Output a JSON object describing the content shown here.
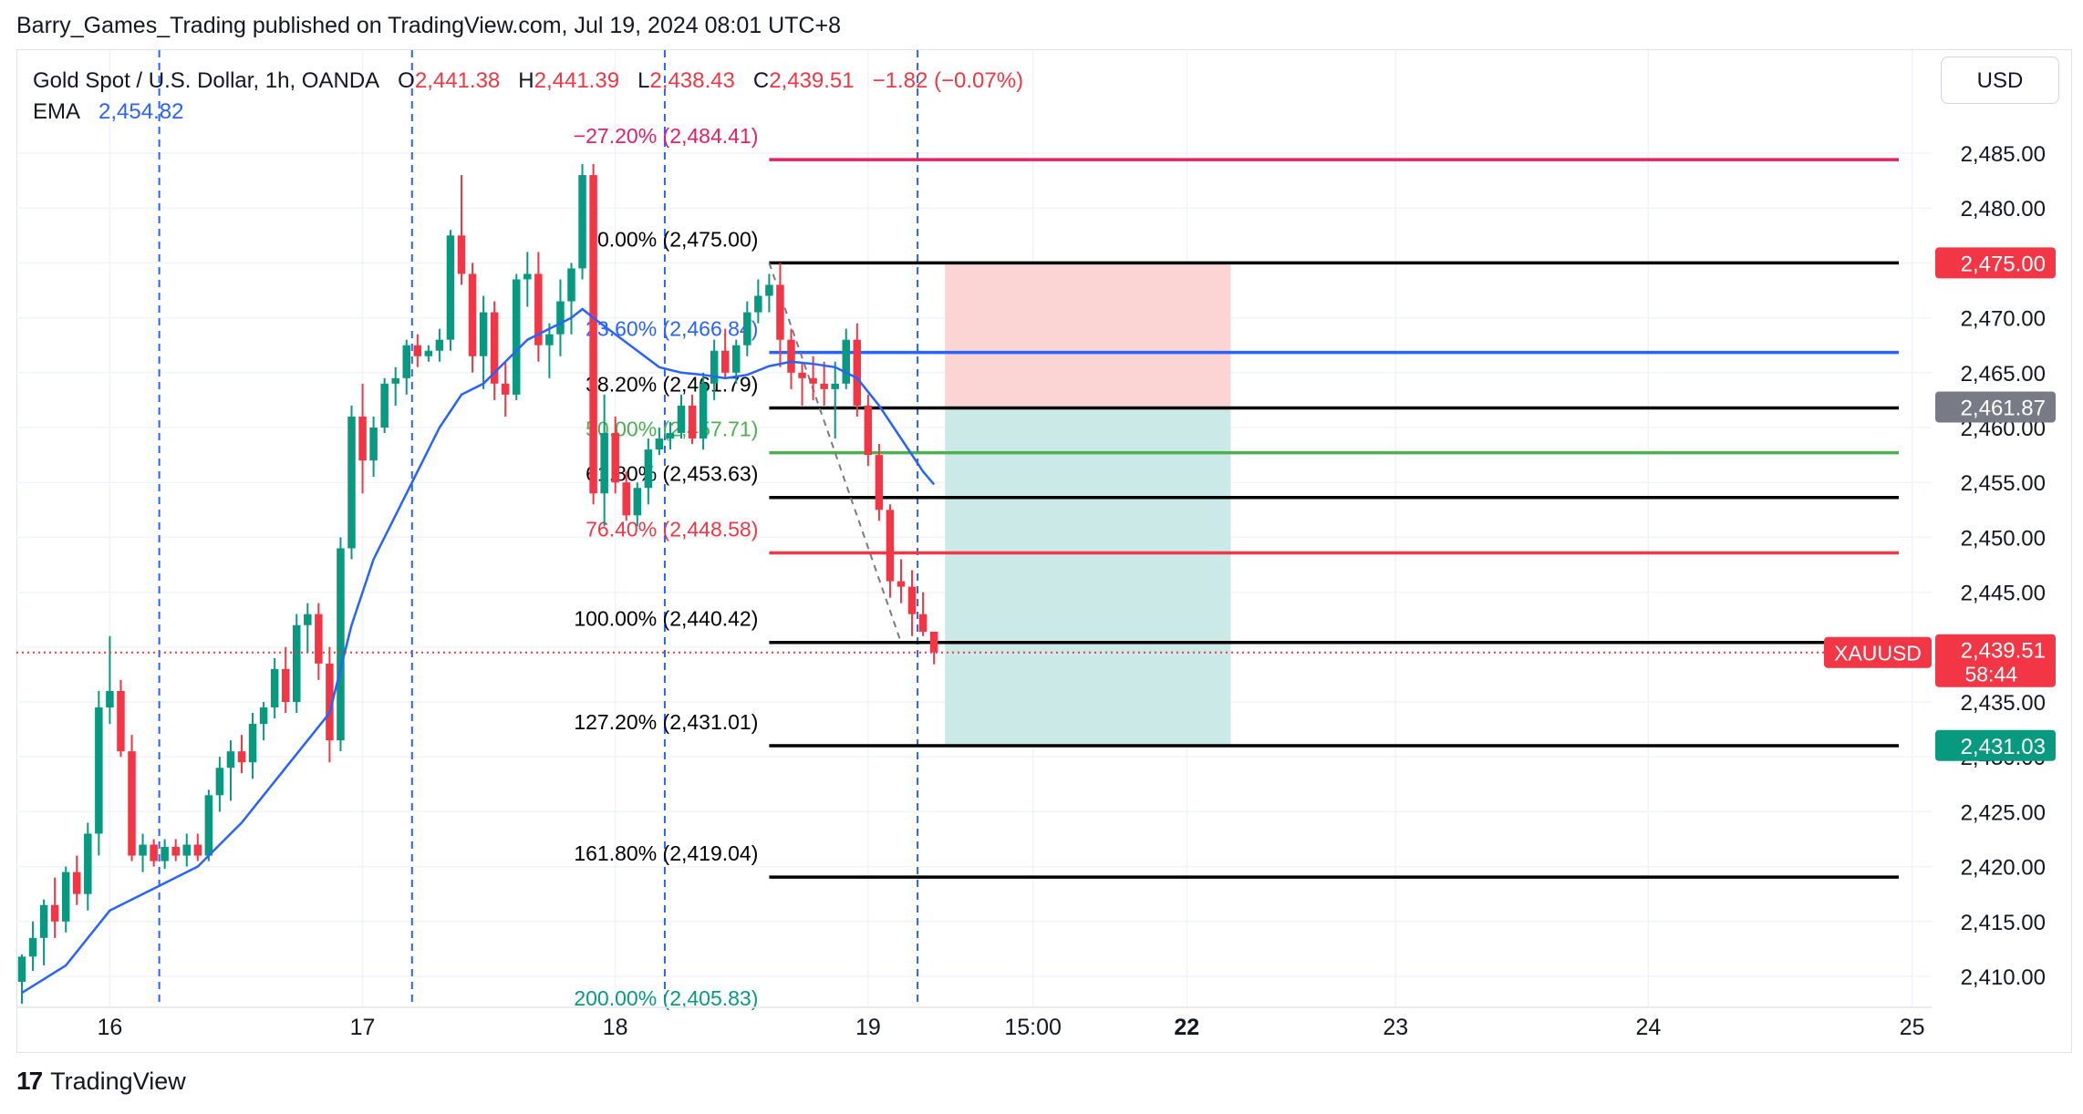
{
  "publisher_line": "Barry_Games_Trading published on TradingView.com, Jul 19, 2024 08:01 UTC+8",
  "legend": {
    "symbol": "Gold Spot / U.S. Dollar, 1h, OANDA",
    "o_label": "O",
    "o_value": "2,441.38",
    "h_label": "H",
    "h_value": "2,441.39",
    "l_label": "L",
    "l_value": "2,438.43",
    "c_label": "C",
    "c_value": "2,439.51",
    "change": "−1.82 (−0.07%)",
    "ema_label": "EMA",
    "ema_value": "2,454.82"
  },
  "currency_button": "USD",
  "footer": {
    "logo_mark": "17",
    "brand": "TradingView"
  },
  "colors": {
    "up": "#089981",
    "down": "#f23645",
    "ema": "#2962ff",
    "stop_zone": "#fbd5d3",
    "target_zone": "#cbe9e7",
    "grid": "#f0f3fa"
  },
  "chart_data": {
    "type": "candlestick",
    "symbol": "XAUUSD",
    "timeframe": "1h",
    "ylim": [
      2407.5,
      2491.5
    ],
    "y_ticks": [
      "2,410.00",
      "2,415.00",
      "2,420.00",
      "2,425.00",
      "2,430.00",
      "2,435.00",
      "2,440.00",
      "2,445.00",
      "2,450.00",
      "2,455.00",
      "2,460.00",
      "2,465.00",
      "2,470.00",
      "2,475.00",
      "2,480.00",
      "2,485.00"
    ],
    "y_tick_values": [
      2410,
      2415,
      2420,
      2425,
      2430,
      2435,
      2440,
      2445,
      2450,
      2455,
      2460,
      2465,
      2470,
      2475,
      2480,
      2485
    ],
    "x_ticks": [
      {
        "label": "16",
        "bar": 8,
        "bold": false
      },
      {
        "label": "17",
        "bar": 31,
        "bold": false
      },
      {
        "label": "18",
        "bar": 54,
        "bold": false
      },
      {
        "label": "19",
        "bar": 77,
        "bold": false
      },
      {
        "label": "15:00",
        "bar": 92,
        "bold": false
      },
      {
        "label": "22",
        "bar": 106,
        "bold": true
      },
      {
        "label": "23",
        "bar": 125,
        "bold": false
      },
      {
        "label": "24",
        "bar": 148,
        "bold": false
      },
      {
        "label": "25",
        "bar": 172,
        "bold": false
      }
    ],
    "session_lines_bar": [
      12.5,
      35.5,
      58.5,
      81.5
    ],
    "candles": [
      [
        2409.5,
        2412,
        2407.5,
        2411.8
      ],
      [
        2411.8,
        2415,
        2410.5,
        2413.5
      ],
      [
        2413.5,
        2417,
        2411,
        2416.5
      ],
      [
        2416.5,
        2419,
        2413.5,
        2415
      ],
      [
        2415,
        2420,
        2414,
        2419.5
      ],
      [
        2419.5,
        2421,
        2416.5,
        2417.5
      ],
      [
        2417.5,
        2424,
        2416,
        2423
      ],
      [
        2423,
        2436,
        2421,
        2434.5
      ],
      [
        2434.5,
        2441,
        2433,
        2436
      ],
      [
        2436,
        2437,
        2430,
        2430.5
      ],
      [
        2430.5,
        2432,
        2420.5,
        2421
      ],
      [
        2421,
        2423,
        2419.5,
        2422
      ],
      [
        2422,
        2422.5,
        2420,
        2420.5
      ],
      [
        2420.5,
        2422.5,
        2419.8,
        2421.8
      ],
      [
        2421.8,
        2422.5,
        2420.5,
        2421
      ],
      [
        2421,
        2423,
        2420,
        2422
      ],
      [
        2422,
        2423,
        2420.5,
        2421
      ],
      [
        2421,
        2427,
        2420.5,
        2426.5
      ],
      [
        2426.5,
        2430,
        2425,
        2429
      ],
      [
        2429,
        2431.5,
        2426,
        2430.5
      ],
      [
        2430.5,
        2432,
        2428.5,
        2429.5
      ],
      [
        2429.5,
        2434,
        2428,
        2433
      ],
      [
        2433,
        2435,
        2431.5,
        2434.5
      ],
      [
        2434.5,
        2439,
        2433.5,
        2438
      ],
      [
        2438,
        2440,
        2434,
        2435
      ],
      [
        2435,
        2443,
        2434,
        2442
      ],
      [
        2442,
        2444,
        2439.5,
        2443
      ],
      [
        2443,
        2444,
        2437,
        2438.5
      ],
      [
        2438.5,
        2440,
        2429.5,
        2431.5
      ],
      [
        2431.5,
        2450,
        2430.5,
        2449
      ],
      [
        2449,
        2462,
        2448,
        2461
      ],
      [
        2461,
        2464,
        2454,
        2457
      ],
      [
        2457,
        2461,
        2455.5,
        2460
      ],
      [
        2460,
        2464.5,
        2459.5,
        2464
      ],
      [
        2464,
        2465.5,
        2462,
        2464.5
      ],
      [
        2464.5,
        2468,
        2463,
        2467.5
      ],
      [
        2467.5,
        2468.5,
        2465.5,
        2466.5
      ],
      [
        2466.5,
        2467.5,
        2466,
        2467
      ],
      [
        2467,
        2469,
        2466,
        2468
      ],
      [
        2468,
        2478,
        2467,
        2477.5
      ],
      [
        2477.5,
        2483,
        2473,
        2474
      ],
      [
        2474,
        2475,
        2465,
        2466.5
      ],
      [
        2466.5,
        2472,
        2463.5,
        2470.5
      ],
      [
        2470.5,
        2471.5,
        2462.5,
        2464
      ],
      [
        2464,
        2466,
        2461,
        2463
      ],
      [
        2463,
        2474,
        2462.5,
        2473.5
      ],
      [
        2473.5,
        2476,
        2471,
        2474
      ],
      [
        2474,
        2476,
        2466,
        2467.5
      ],
      [
        2467.5,
        2469.5,
        2464.5,
        2468.5
      ],
      [
        2468.5,
        2473.5,
        2466.5,
        2471.5
      ],
      [
        2471.5,
        2475,
        2468.5,
        2474.5
      ],
      [
        2474.5,
        2484,
        2473.5,
        2483
      ],
      [
        2483,
        2484,
        2453,
        2454
      ],
      [
        2454,
        2463,
        2451,
        2459.5
      ],
      [
        2459.5,
        2461,
        2454,
        2455
      ],
      [
        2455,
        2456,
        2451.5,
        2452
      ],
      [
        2452,
        2455,
        2451,
        2454.5
      ],
      [
        2454.5,
        2459,
        2453,
        2458
      ],
      [
        2458,
        2460,
        2457.5,
        2459
      ],
      [
        2459,
        2460.5,
        2458,
        2459.5
      ],
      [
        2459.5,
        2463,
        2459,
        2462
      ],
      [
        2462,
        2463,
        2458.5,
        2459
      ],
      [
        2459,
        2465,
        2458,
        2464
      ],
      [
        2464,
        2468,
        2462.5,
        2467
      ],
      [
        2467,
        2469,
        2464.5,
        2465
      ],
      [
        2465,
        2468,
        2464,
        2467.5
      ],
      [
        2467.5,
        2471.5,
        2466.5,
        2470.5
      ],
      [
        2470.5,
        2473.5,
        2469.5,
        2472
      ],
      [
        2472,
        2474,
        2470.5,
        2473
      ],
      [
        2473,
        2475,
        2465.5,
        2468
      ],
      [
        2468,
        2469,
        2463.5,
        2465
      ],
      [
        2465,
        2466,
        2462,
        2464.5
      ],
      [
        2464.5,
        2466.5,
        2462.5,
        2464
      ],
      [
        2464,
        2466,
        2462,
        2463.5
      ],
      [
        2463.5,
        2466,
        2459,
        2464
      ],
      [
        2464,
        2469,
        2463.5,
        2468
      ],
      [
        2468,
        2469.5,
        2461,
        2462
      ],
      [
        2462,
        2463,
        2456.5,
        2457.5
      ],
      [
        2457.5,
        2458.5,
        2451.5,
        2452.5
      ],
      [
        2452.5,
        2453,
        2444.5,
        2446
      ],
      [
        2446,
        2448,
        2444,
        2445.5
      ],
      [
        2445.5,
        2447,
        2441,
        2443
      ],
      [
        2443,
        2445,
        2441,
        2441.4
      ],
      [
        2441.4,
        2441.39,
        2438.43,
        2439.51
      ]
    ],
    "ema": [
      [
        0,
        2408.5
      ],
      [
        4,
        2411
      ],
      [
        8,
        2416
      ],
      [
        12,
        2418
      ],
      [
        16,
        2420
      ],
      [
        20,
        2424
      ],
      [
        24,
        2429
      ],
      [
        28,
        2434
      ],
      [
        30,
        2442
      ],
      [
        32,
        2448
      ],
      [
        34,
        2452
      ],
      [
        36,
        2456
      ],
      [
        38,
        2460
      ],
      [
        40,
        2463
      ],
      [
        42,
        2464
      ],
      [
        44,
        2466
      ],
      [
        46,
        2468
      ],
      [
        48,
        2469
      ],
      [
        50,
        2470
      ],
      [
        51,
        2470.8
      ],
      [
        52,
        2470
      ],
      [
        54,
        2468.5
      ],
      [
        56,
        2467
      ],
      [
        58,
        2465.5
      ],
      [
        60,
        2465
      ],
      [
        62,
        2464.8
      ],
      [
        64,
        2464.5
      ],
      [
        66,
        2464.8
      ],
      [
        68,
        2465.6
      ],
      [
        70,
        2466
      ],
      [
        72,
        2465.8
      ],
      [
        74,
        2465.5
      ],
      [
        76,
        2464.5
      ],
      [
        78,
        2462
      ],
      [
        80,
        2459
      ],
      [
        82,
        2456
      ],
      [
        83,
        2454.82
      ]
    ],
    "fib_levels": [
      {
        "label": "−27.20% (2,484.41)",
        "value": 2484.41,
        "color": "#e91e63"
      },
      {
        "label": "0.00% (2,475.00)",
        "value": 2475.0,
        "color": "#000000"
      },
      {
        "label": "23.60% (2,466.84)",
        "value": 2466.84,
        "color": "#2962ff"
      },
      {
        "label": "38.20% (2,461.79)",
        "value": 2461.79,
        "color": "#000000"
      },
      {
        "label": "50.00% (2,457.71)",
        "value": 2457.71,
        "color": "#4caf50"
      },
      {
        "label": "61.80% (2,453.63)",
        "value": 2453.63,
        "color": "#000000"
      },
      {
        "label": "76.40% (2,448.58)",
        "value": 2448.58,
        "color": "#f23645"
      },
      {
        "label": "100.00% (2,440.42)",
        "value": 2440.42,
        "color": "#000000"
      },
      {
        "label": "127.20% (2,431.01)",
        "value": 2431.01,
        "color": "#000000"
      },
      {
        "label": "161.80% (2,419.04)",
        "value": 2419.04,
        "color": "#000000"
      },
      {
        "label": "200.00% (2,405.83)",
        "value": 2405.83,
        "color": "#089981"
      }
    ],
    "fib_anchor": {
      "from": [
        68,
        2475.0
      ],
      "to": [
        80,
        2440.42
      ]
    },
    "position": {
      "entry": 2461.87,
      "stop": 2475.0,
      "target": 2431.03,
      "bar_start": 84,
      "bar_end": 110
    },
    "price_labels": [
      {
        "text": "2,475.00",
        "value": 2475.0,
        "color": "#f23645"
      },
      {
        "text": "2,461.87",
        "value": 2461.87,
        "color": "#787b86"
      },
      {
        "text": "2,431.03",
        "value": 2431.03,
        "color": "#089981"
      }
    ],
    "last_price": {
      "symbol": "XAUUSD",
      "price": "2,439.51",
      "countdown": "58:44",
      "value": 2439.51
    }
  }
}
